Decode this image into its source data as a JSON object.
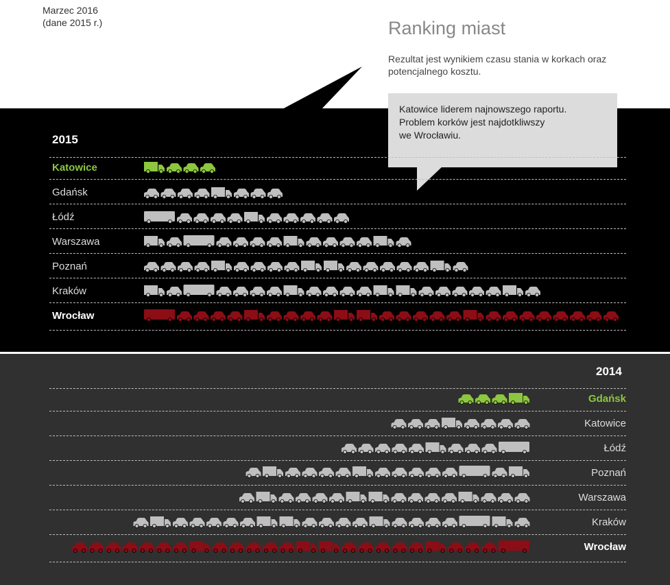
{
  "header": {
    "date": "Marzec 2016",
    "data_year_note": "(dane 2015 r.)",
    "title": "Ranking miast",
    "subtitle": "Rezultat jest wynikiem czasu stania w korkach oraz potencjalnego kosztu."
  },
  "callout": {
    "line1": "Katowice liderem najnowszego raportu.",
    "line2": "Problem korków jest najdotkliwszy",
    "line3": "we Wrocławiu."
  },
  "colors": {
    "best": "#8dc63f",
    "neutral": "#bfbfbf",
    "worst": "#8b0d16",
    "panel_2015": "#000000",
    "panel_2014": "#303030",
    "callout": "#dcdcdc"
  },
  "chart_data": [
    {
      "type": "bar",
      "year": "2015",
      "categories": [
        "Katowice",
        "Gdańsk",
        "Łódź",
        "Warszawa",
        "Poznań",
        "Kraków",
        "Wrocław"
      ],
      "highlight": {
        "best": "Katowice",
        "worst": "Wrocław"
      },
      "rows": [
        {
          "city": "Katowice",
          "vehicles": [
            "T",
            "C",
            "C",
            "C"
          ]
        },
        {
          "city": "Gdańsk",
          "vehicles": [
            "C",
            "C",
            "C",
            "C",
            "T",
            "C",
            "C",
            "C"
          ]
        },
        {
          "city": "Łódź",
          "vehicles": [
            "B",
            "C",
            "C",
            "C",
            "C",
            "T",
            "C",
            "C",
            "C",
            "C",
            "C"
          ]
        },
        {
          "city": "Warszawa",
          "vehicles": [
            "T",
            "C",
            "B",
            "C",
            "C",
            "C",
            "C",
            "T",
            "C",
            "C",
            "C",
            "C",
            "T",
            "C"
          ]
        },
        {
          "city": "Poznań",
          "vehicles": [
            "C",
            "C",
            "C",
            "C",
            "T",
            "C",
            "C",
            "C",
            "C",
            "T",
            "T",
            "C",
            "C",
            "C",
            "C",
            "C",
            "T",
            "C"
          ]
        },
        {
          "city": "Kraków",
          "vehicles": [
            "T",
            "C",
            "B",
            "C",
            "C",
            "C",
            "C",
            "T",
            "C",
            "C",
            "C",
            "C",
            "T",
            "T",
            "C",
            "C",
            "C",
            "C",
            "C",
            "T",
            "C"
          ]
        },
        {
          "city": "Wrocław",
          "vehicles": [
            "B",
            "C",
            "C",
            "C",
            "C",
            "T",
            "C",
            "C",
            "C",
            "C",
            "T",
            "T",
            "C",
            "C",
            "C",
            "C",
            "C",
            "T",
            "C",
            "C",
            "C",
            "C",
            "C",
            "C",
            "C",
            "C"
          ]
        }
      ]
    },
    {
      "type": "bar",
      "year": "2014",
      "categories": [
        "Gdańsk",
        "Katowice",
        "Łódź",
        "Poznań",
        "Warszawa",
        "Kraków",
        "Wrocław"
      ],
      "highlight": {
        "best": "Gdańsk",
        "worst": "Wrocław"
      },
      "rows": [
        {
          "city": "Gdańsk",
          "vehicles": [
            "C",
            "C",
            "C",
            "T"
          ]
        },
        {
          "city": "Katowice",
          "vehicles": [
            "C",
            "C",
            "C",
            "T",
            "C",
            "C",
            "C",
            "C"
          ]
        },
        {
          "city": "Łódź",
          "vehicles": [
            "C",
            "C",
            "C",
            "C",
            "C",
            "T",
            "C",
            "C",
            "C",
            "B"
          ]
        },
        {
          "city": "Poznań",
          "vehicles": [
            "C",
            "T",
            "C",
            "C",
            "C",
            "C",
            "T",
            "C",
            "C",
            "C",
            "C",
            "C",
            "B",
            "C",
            "T"
          ]
        },
        {
          "city": "Warszawa",
          "vehicles": [
            "C",
            "T",
            "C",
            "C",
            "C",
            "C",
            "T",
            "T",
            "C",
            "C",
            "C",
            "C",
            "T",
            "C",
            "C",
            "C"
          ]
        },
        {
          "city": "Kraków",
          "vehicles": [
            "C",
            "T",
            "C",
            "C",
            "C",
            "C",
            "C",
            "T",
            "T",
            "C",
            "C",
            "C",
            "C",
            "T",
            "C",
            "C",
            "C",
            "C",
            "B",
            "T",
            "C"
          ]
        },
        {
          "city": "Wrocław",
          "vehicles": [
            "C",
            "C",
            "C",
            "C",
            "C",
            "C",
            "C",
            "T",
            "C",
            "C",
            "C",
            "C",
            "C",
            "T",
            "T",
            "C",
            "C",
            "C",
            "C",
            "C",
            "T",
            "C",
            "C",
            "C",
            "B"
          ]
        }
      ]
    }
  ]
}
